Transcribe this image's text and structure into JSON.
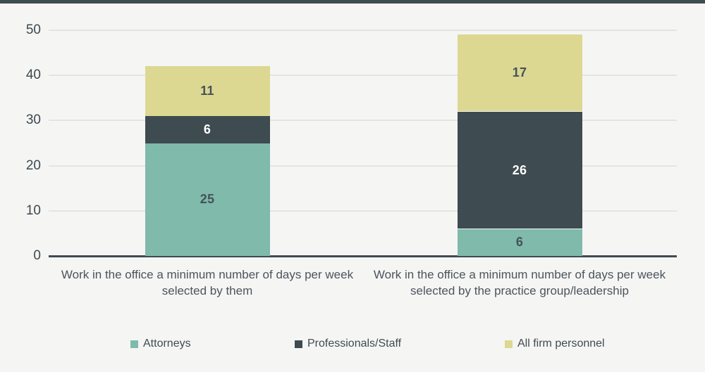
{
  "page": {
    "background_color": "#f5f5f4",
    "top_strip_color": "#3e4b51",
    "axis_color": "#3e4b51",
    "grid_color": "#e4e4e2",
    "tick_text_color": "#3d494e",
    "category_text_color": "#4b555b"
  },
  "chart_data": {
    "type": "bar",
    "stacked": true,
    "title": "",
    "xlabel": "",
    "ylabel": "",
    "ylim": [
      0,
      50
    ],
    "yticks": [
      0,
      10,
      20,
      30,
      40,
      50
    ],
    "grid": true,
    "legend_position": "bottom",
    "categories": [
      "Work in the office a minimum number of days per week selected by them",
      "Work in the office a minimum number of days per week selected by the practice group/leadership"
    ],
    "series": [
      {
        "name": "Attorneys",
        "color": "#7fbaab",
        "label_color": "#46525a",
        "values": [
          25,
          6
        ]
      },
      {
        "name": "Professionals/Staff",
        "color": "#3e4b51",
        "label_color": "#ffffff",
        "values": [
          6,
          26
        ]
      },
      {
        "name": "All firm personnel",
        "color": "#dcd892",
        "label_color": "#46525a",
        "values": [
          11,
          17
        ]
      }
    ]
  }
}
